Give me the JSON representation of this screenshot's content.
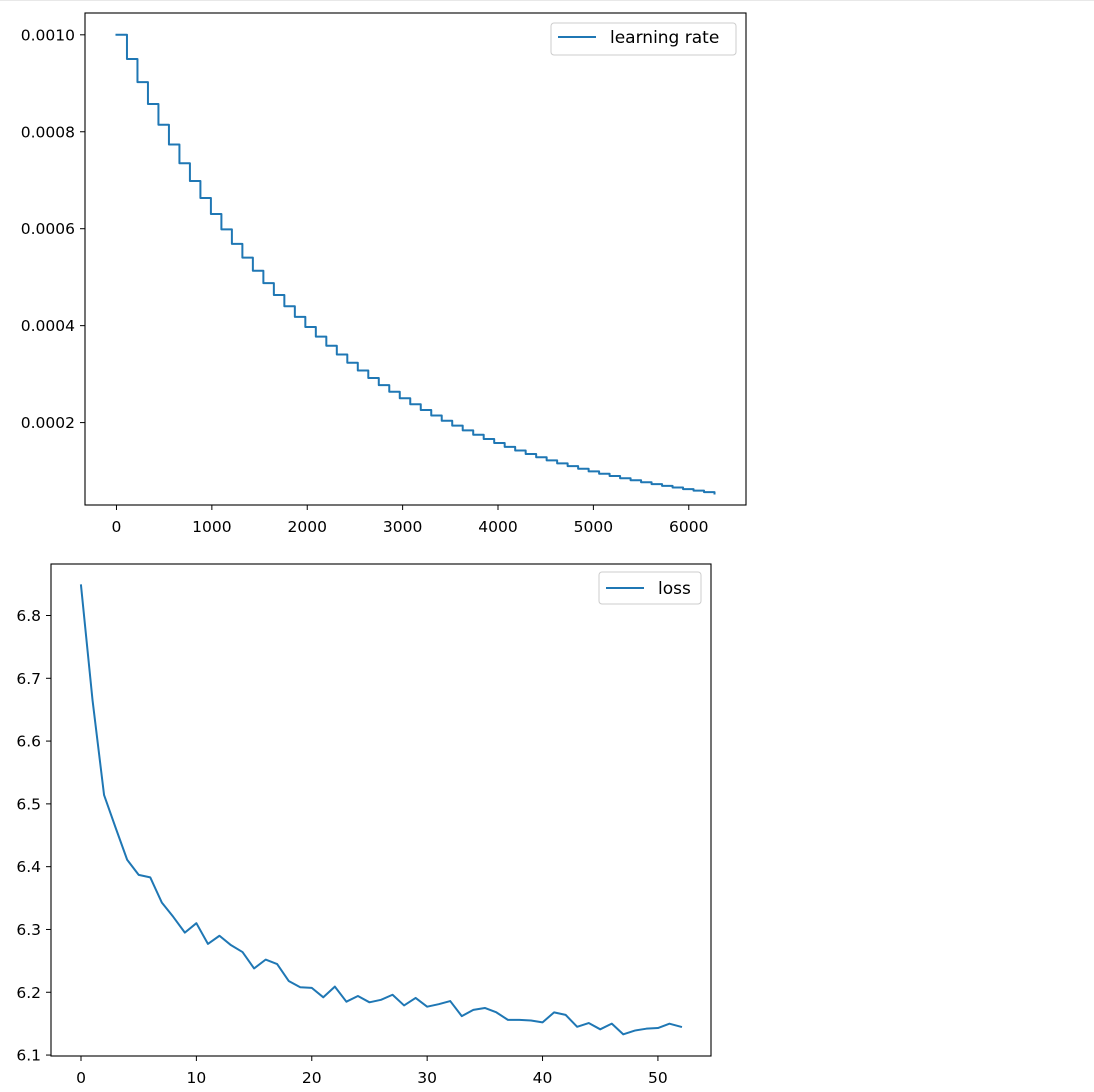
{
  "colors": {
    "series": "#1f77b4",
    "axes": "#000000",
    "legend_border": "#cccccc",
    "background": "#ffffff"
  },
  "chart_data": [
    {
      "type": "line",
      "step": true,
      "title": "",
      "xlabel": "",
      "ylabel": "",
      "xlim": [
        -330,
        6600
      ],
      "ylim": [
        3e-05,
        0.001045
      ],
      "xticks": [
        0,
        1000,
        2000,
        3000,
        4000,
        5000,
        6000
      ],
      "xtick_labels": [
        "0",
        "1000",
        "2000",
        "3000",
        "4000",
        "5000",
        "6000"
      ],
      "yticks": [
        0.0002,
        0.0004,
        0.0006,
        0.0008,
        0.001
      ],
      "ytick_labels": [
        "0.0002",
        "0.0004",
        "0.0006",
        "0.0008",
        "0.0010"
      ],
      "grid": false,
      "legend_position": "top-right",
      "series": [
        {
          "name": "learning rate",
          "color": "#1f77b4",
          "step_interval": 110,
          "x_start": 0,
          "x_end": 6270,
          "values": [
            0.001,
            0.00095,
            0.0009025,
            0.000857375,
            0.00081450625,
            0.0007737809375,
            0.000735091890625,
            0.00069833729609375,
            0.0006634204312890625,
            0.0006302494097246094,
            0.0005987369392383789,
            0.00056880009227646,
            0.000540360087662637,
            0.0005133420832795051,
            0.00048767497911552987,
            0.00046329123015975335,
            0.0004401266686517657,
            0.0004181203352191774,
            0.0003972143184582185,
            0.0003773536025353076,
            0.0003584859224085422,
            0.0003405616262881151,
            0.0003235335449737093,
            0.0003073568677250289,
            0.0002919890243387774,
            0.0002773895731218385,
            0.0002635200944657466,
            0.0002503440897424593,
            0.00023782688525533633,
            0.00022593554099256948,
            0.000214638763942941,
            0.00020390682574579396,
            0.00019371148445850427,
            0.00018402591023557906,
            0.0001748246147238001,
            0.00016608338398761008,
            0.00015777921478822958,
            0.0001498902540488181,
            0.0001423957413463772,
            0.00013527595427905833,
            0.00012851215656510542,
            0.00012208654873685016,
            0.00011598222130000764,
            0.00011018311023500726,
            0.0001046739547232569,
            9.944025698709405e-05,
            9.446824413773935e-05,
            8.974483193085239e-05,
            8.525759033430976e-05,
            8.099471081759427e-05,
            7.694497527671456e-05,
            7.309772651287884e-05,
            6.944284018723489e-05,
            6.597069817787315e-05,
            6.26721632689795e-05,
            5.9538555105530523e-05,
            5.6561627350254e-05,
            5.37335459827413e-05
          ]
        }
      ]
    },
    {
      "type": "line",
      "title": "",
      "xlabel": "",
      "ylabel": "",
      "xlim": [
        -2.6,
        54.6
      ],
      "ylim": [
        6.0985,
        6.882
      ],
      "xticks": [
        0,
        10,
        20,
        30,
        40,
        50
      ],
      "xtick_labels": [
        "0",
        "10",
        "20",
        "30",
        "40",
        "50"
      ],
      "yticks": [
        6.1,
        6.2,
        6.3,
        6.4,
        6.5,
        6.6,
        6.7,
        6.8
      ],
      "ytick_labels": [
        "6.1",
        "6.2",
        "6.3",
        "6.4",
        "6.5",
        "6.6",
        "6.7",
        "6.8"
      ],
      "grid": false,
      "legend_position": "top-right",
      "series": [
        {
          "name": "loss",
          "color": "#1f77b4",
          "x": [
            0,
            1,
            2,
            3,
            4,
            5,
            6,
            7,
            8,
            9,
            10,
            11,
            12,
            13,
            14,
            15,
            16,
            17,
            18,
            19,
            20,
            21,
            22,
            23,
            24,
            25,
            26,
            27,
            28,
            29,
            30,
            31,
            32,
            33,
            34,
            35,
            36,
            37,
            38,
            39,
            40,
            41,
            42,
            43,
            44,
            45,
            46,
            47,
            48,
            49,
            50,
            51,
            52
          ],
          "values": [
            6.848,
            6.665,
            6.514,
            6.462,
            6.411,
            6.387,
            6.383,
            6.343,
            6.32,
            6.295,
            6.31,
            6.277,
            6.29,
            6.275,
            6.264,
            6.238,
            6.252,
            6.245,
            6.218,
            6.208,
            6.207,
            6.192,
            6.209,
            6.185,
            6.194,
            6.184,
            6.188,
            6.196,
            6.179,
            6.191,
            6.177,
            6.181,
            6.186,
            6.162,
            6.172,
            6.175,
            6.168,
            6.156,
            6.156,
            6.155,
            6.152,
            6.168,
            6.164,
            6.145,
            6.151,
            6.141,
            6.15,
            6.133,
            6.139,
            6.142,
            6.143,
            6.15,
            6.145
          ]
        }
      ]
    }
  ]
}
